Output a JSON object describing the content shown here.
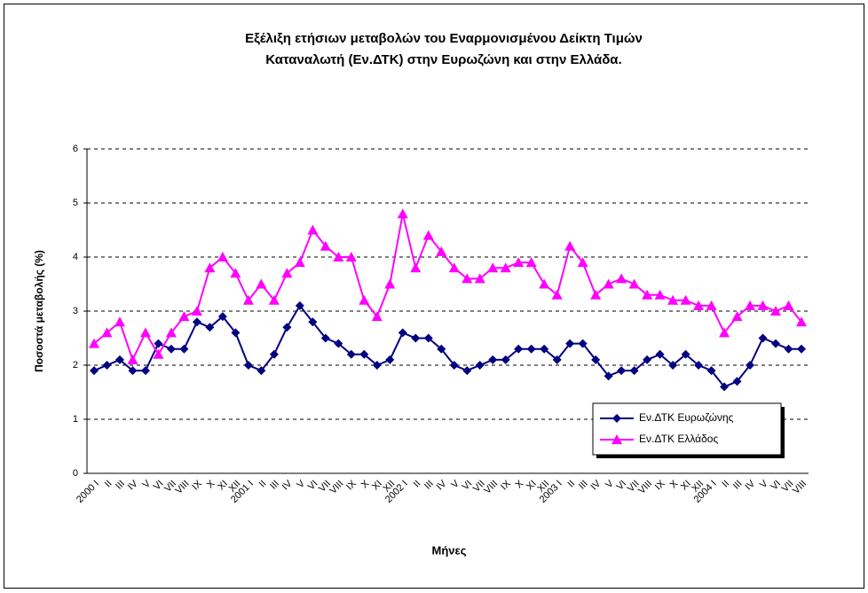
{
  "chart_data": {
    "type": "line",
    "title": "Εξέλιξη ετήσιων μεταβολών του Εναρμονισμένου Δείκτη Τιμών Καταναλωτή (Εν.ΔΤΚ) στην Ευρωζώνη  και στην Ελλάδα.",
    "title_lines": [
      "Εξέλιξη ετήσιων μεταβολών του Εναρμονισμένου Δείκτη Τιμών",
      "Καταναλωτή (Εν.ΔΤΚ) στην Ευρωζώνη  και στην Ελλάδα."
    ],
    "x_label": "Μήνες",
    "y_label": "Ποσοστά μεταβολής (%)",
    "categories": [
      "2000 I",
      "II",
      "III",
      "IV",
      "V",
      "VI",
      "VII",
      "VIII",
      "IX",
      "X",
      "XI",
      "XII",
      "2001 I",
      "II",
      "III",
      "IV",
      "V",
      "VI",
      "VII",
      "VIII",
      "IX",
      "X",
      "XI",
      "XII",
      "2002 I",
      "II",
      "III",
      "IV",
      "V",
      "VI",
      "VII",
      "VIII",
      "IX",
      "X",
      "XI",
      "XII",
      "2003 I",
      "II",
      "III",
      "IV",
      "V",
      "VI",
      "VII",
      "VIII",
      "IX",
      "X",
      "XI",
      "XII",
      "2004 I",
      "II",
      "III",
      "IV",
      "V",
      "VI",
      "VII",
      "VIII"
    ],
    "series": [
      {
        "name": "Εν.ΔΤΚ Ευρωζώνης",
        "color": "#000080",
        "marker": "diamond",
        "values": [
          1.9,
          2.0,
          2.1,
          1.9,
          1.9,
          2.4,
          2.3,
          2.3,
          2.8,
          2.7,
          2.9,
          2.6,
          2.0,
          1.9,
          2.2,
          2.7,
          3.1,
          2.8,
          2.5,
          2.4,
          2.2,
          2.2,
          2.0,
          2.1,
          2.6,
          2.5,
          2.5,
          2.3,
          2.0,
          1.9,
          2.0,
          2.1,
          2.1,
          2.3,
          2.3,
          2.3,
          2.1,
          2.4,
          2.4,
          2.1,
          1.8,
          1.9,
          1.9,
          2.1,
          2.2,
          2.0,
          2.2,
          2.0,
          1.9,
          1.6,
          1.7,
          2.0,
          2.5,
          2.4,
          2.3,
          2.3
        ]
      },
      {
        "name": "Εν.ΔΤΚ Ελλάδος",
        "color": "#ff00ff",
        "marker": "triangle",
        "values": [
          2.4,
          2.6,
          2.8,
          2.1,
          2.6,
          2.2,
          2.6,
          2.9,
          3.0,
          3.8,
          4.0,
          3.7,
          3.2,
          3.5,
          3.2,
          3.7,
          3.9,
          4.5,
          4.2,
          4.0,
          4.0,
          3.2,
          2.9,
          3.5,
          4.8,
          3.8,
          4.4,
          4.1,
          3.8,
          3.6,
          3.6,
          3.8,
          3.8,
          3.9,
          3.9,
          3.5,
          3.3,
          4.2,
          3.9,
          3.3,
          3.5,
          3.6,
          3.5,
          3.3,
          3.3,
          3.2,
          3.2,
          3.1,
          3.1,
          2.6,
          2.9,
          3.1,
          3.1,
          3.0,
          3.1,
          2.8
        ]
      }
    ],
    "ylim": [
      0,
      6
    ],
    "yticks": [
      0,
      1,
      2,
      3,
      4,
      5,
      6
    ],
    "grid": true,
    "legend": "lower-right"
  }
}
